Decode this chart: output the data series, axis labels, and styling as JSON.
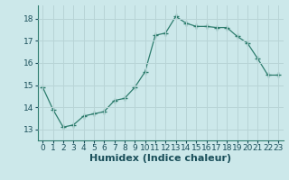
{
  "x": [
    0,
    1,
    2,
    3,
    4,
    5,
    6,
    7,
    8,
    9,
    10,
    11,
    12,
    13,
    14,
    15,
    16,
    17,
    18,
    19,
    20,
    21,
    22,
    23
  ],
  "y": [
    14.9,
    13.9,
    13.1,
    13.2,
    13.6,
    13.7,
    13.8,
    14.3,
    14.4,
    14.9,
    15.6,
    17.25,
    17.35,
    18.1,
    17.8,
    17.65,
    17.65,
    17.6,
    17.6,
    17.2,
    16.9,
    16.2,
    15.45,
    15.45
  ],
  "line_color": "#2e7d6e",
  "marker": "+",
  "marker_size": 4,
  "bg_color": "#cce8ea",
  "grid_color": "#b8d4d6",
  "xlabel": "Humidex (Indice chaleur)",
  "ylim": [
    12.5,
    18.6
  ],
  "xlim": [
    -0.5,
    23.5
  ],
  "yticks": [
    13,
    14,
    15,
    16,
    17,
    18
  ],
  "xticks": [
    0,
    1,
    2,
    3,
    4,
    5,
    6,
    7,
    8,
    9,
    10,
    11,
    12,
    13,
    14,
    15,
    16,
    17,
    18,
    19,
    20,
    21,
    22,
    23
  ],
  "xtick_labels": [
    "0",
    "1",
    "2",
    "3",
    "4",
    "5",
    "6",
    "7",
    "8",
    "9",
    "10",
    "11",
    "12",
    "13",
    "14",
    "15",
    "16",
    "17",
    "18",
    "19",
    "20",
    "21",
    "22",
    "23"
  ],
  "axis_color": "#2e7d6e",
  "tick_fontsize": 6.5,
  "xlabel_fontsize": 8
}
